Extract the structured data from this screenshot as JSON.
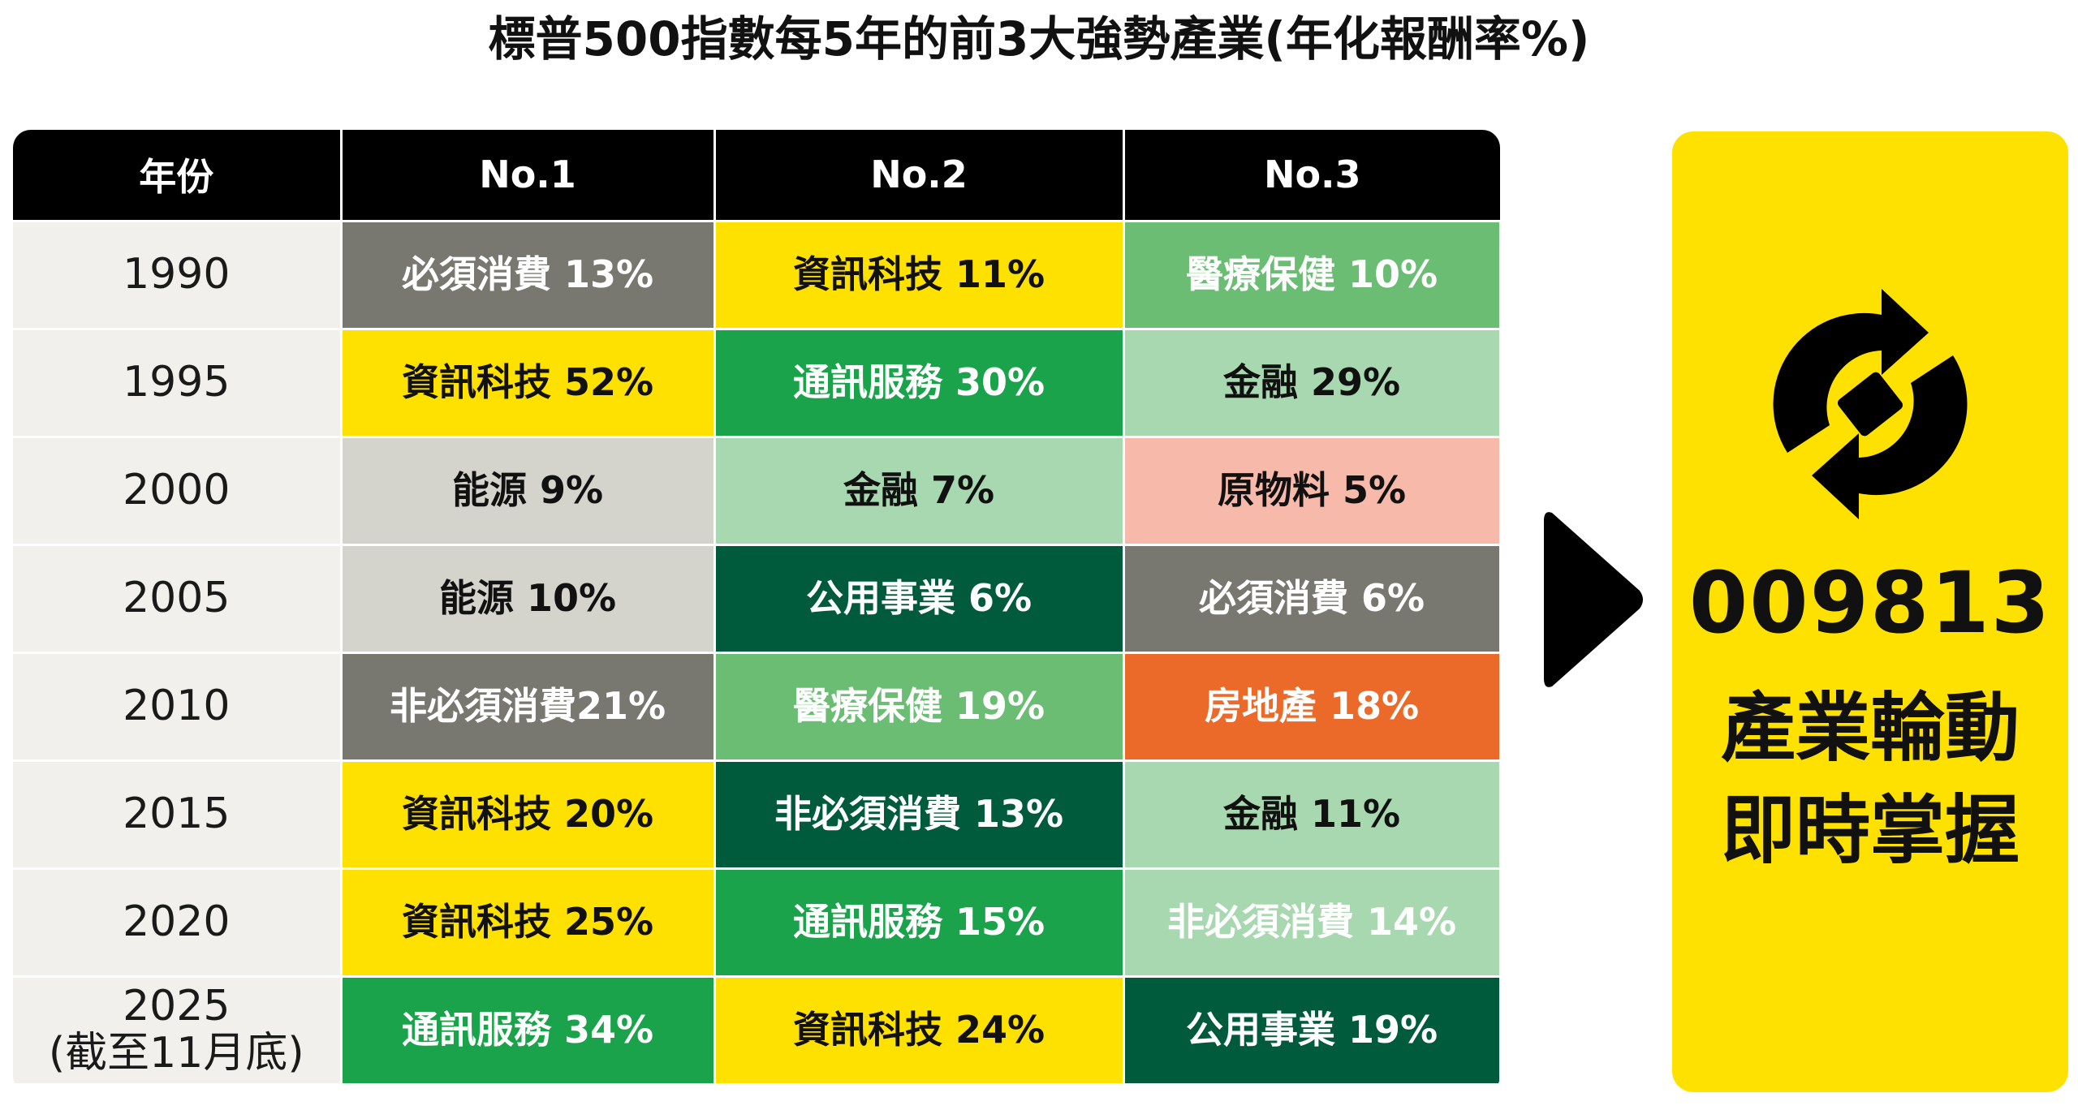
{
  "title": "標普500指數每5年的前3大強勢產業(年化報酬率%)",
  "chart_data": {
    "type": "table",
    "title": "標普500指數每5年的前3大強勢產業(年化報酬率%)",
    "columns": [
      "年份",
      "No.1",
      "No.2",
      "No.3"
    ],
    "rows": [
      {
        "year": "1990",
        "year_note": "",
        "cells": [
          {
            "label": "必須消費 13%",
            "sector": "必須消費",
            "value": 13,
            "bg": "#787871",
            "fg": "#ffffff"
          },
          {
            "label": "資訊科技 11%",
            "sector": "資訊科技",
            "value": 11,
            "bg": "#ffe100",
            "fg": "#111111"
          },
          {
            "label": "醫療保健 10%",
            "sector": "醫療保健",
            "value": 10,
            "bg": "#6bbd74",
            "fg": "#ffffff"
          }
        ]
      },
      {
        "year": "1995",
        "year_note": "",
        "cells": [
          {
            "label": "資訊科技 52%",
            "sector": "資訊科技",
            "value": 52,
            "bg": "#ffe100",
            "fg": "#111111"
          },
          {
            "label": "通訊服務 30%",
            "sector": "通訊服務",
            "value": 30,
            "bg": "#1aa34a",
            "fg": "#ffffff"
          },
          {
            "label": "金融 29%",
            "sector": "金融",
            "value": 29,
            "bg": "#a8d8b0",
            "fg": "#111111"
          }
        ]
      },
      {
        "year": "2000",
        "year_note": "",
        "cells": [
          {
            "label": "能源 9%",
            "sector": "能源",
            "value": 9,
            "bg": "#d4d3cc",
            "fg": "#111111"
          },
          {
            "label": "金融 7%",
            "sector": "金融",
            "value": 7,
            "bg": "#a8d8b0",
            "fg": "#111111"
          },
          {
            "label": "原物料 5%",
            "sector": "原物料",
            "value": 5,
            "bg": "#f6b9aa",
            "fg": "#111111"
          }
        ]
      },
      {
        "year": "2005",
        "year_note": "",
        "cells": [
          {
            "label": "能源 10%",
            "sector": "能源",
            "value": 10,
            "bg": "#d4d3cc",
            "fg": "#111111"
          },
          {
            "label": "公用事業 6%",
            "sector": "公用事業",
            "value": 6,
            "bg": "#005b3d",
            "fg": "#ffffff"
          },
          {
            "label": "必須消費 6%",
            "sector": "必須消費",
            "value": 6,
            "bg": "#787871",
            "fg": "#ffffff"
          }
        ]
      },
      {
        "year": "2010",
        "year_note": "",
        "cells": [
          {
            "label": "非必須消費21%",
            "sector": "非必須消費",
            "value": 21,
            "bg": "#787871",
            "fg": "#ffffff"
          },
          {
            "label": "醫療保健 19%",
            "sector": "醫療保健",
            "value": 19,
            "bg": "#6bbd74",
            "fg": "#ffffff"
          },
          {
            "label": "房地產 18%",
            "sector": "房地產",
            "value": 18,
            "bg": "#eb6a29",
            "fg": "#ffffff"
          }
        ]
      },
      {
        "year": "2015",
        "year_note": "",
        "cells": [
          {
            "label": "資訊科技 20%",
            "sector": "資訊科技",
            "value": 20,
            "bg": "#ffe100",
            "fg": "#111111"
          },
          {
            "label": "非必須消費 13%",
            "sector": "非必須消費",
            "value": 13,
            "bg": "#005b3d",
            "fg": "#ffffff"
          },
          {
            "label": "金融 11%",
            "sector": "金融",
            "value": 11,
            "bg": "#a8d8b0",
            "fg": "#111111"
          }
        ]
      },
      {
        "year": "2020",
        "year_note": "",
        "cells": [
          {
            "label": "資訊科技 25%",
            "sector": "資訊科技",
            "value": 25,
            "bg": "#ffe100",
            "fg": "#111111"
          },
          {
            "label": "通訊服務 15%",
            "sector": "通訊服務",
            "value": 15,
            "bg": "#1aa34a",
            "fg": "#ffffff"
          },
          {
            "label": "非必須消費 14%",
            "sector": "非必須消費",
            "value": 14,
            "bg": "#a8d8b0",
            "fg": "#ffffff"
          }
        ]
      },
      {
        "year": "2025",
        "year_note": "(截至11月底)",
        "cells": [
          {
            "label": "通訊服務 34%",
            "sector": "通訊服務",
            "value": 34,
            "bg": "#1aa34a",
            "fg": "#ffffff"
          },
          {
            "label": "資訊科技 24%",
            "sector": "資訊科技",
            "value": 24,
            "bg": "#ffe100",
            "fg": "#111111"
          },
          {
            "label": "公用事業 19%",
            "sector": "公用事業",
            "value": 19,
            "bg": "#005b3d",
            "fg": "#ffffff"
          }
        ]
      }
    ]
  },
  "side_panel": {
    "icon": "rotation-cycle-icon",
    "code": "009813",
    "slogan_line1": "產業輪動",
    "slogan_line2": "即時掌握",
    "bg": "#ffe100"
  },
  "arrow_icon": "play-arrow-icon"
}
